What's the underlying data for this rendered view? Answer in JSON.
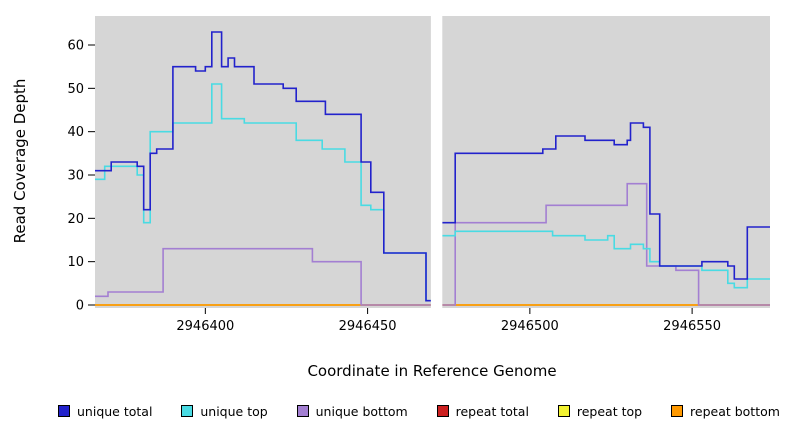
{
  "figure": {
    "background": "#ffffff",
    "panel_background": "#d6d6d6"
  },
  "axes": {
    "y_label": "Read Coverage Depth",
    "x_label": "Coordinate in Reference Genome",
    "y_ticks": [
      0,
      10,
      20,
      30,
      40,
      50,
      60
    ],
    "x_ticks": [
      2946400,
      2946450,
      2946500,
      2946550
    ]
  },
  "chart_data": {
    "type": "line",
    "step": true,
    "title": "",
    "xlabel": "Coordinate in Reference Genome",
    "ylabel": "Read Coverage Depth",
    "xlim": [
      2946366,
      2946574
    ],
    "ylim": [
      0,
      65
    ],
    "gap": [
      2946469.5,
      2946473
    ],
    "grid": false,
    "legend_position": "bottom",
    "series": [
      {
        "name": "repeat total",
        "color": "#cc2020",
        "segments": [
          [
            [
              2946366,
              0
            ],
            [
              2946469.5,
              0
            ]
          ],
          [
            [
              2946473,
              0
            ],
            [
              2946574,
              0
            ]
          ]
        ]
      },
      {
        "name": "repeat top",
        "color": "#f2f231",
        "segments": [
          [
            [
              2946366,
              0
            ],
            [
              2946469.5,
              0
            ]
          ],
          [
            [
              2946473,
              0
            ],
            [
              2946574,
              0
            ]
          ]
        ]
      },
      {
        "name": "repeat bottom",
        "color": "#ff9900",
        "segments": [
          [
            [
              2946366,
              0
            ],
            [
              2946469.5,
              0
            ]
          ],
          [
            [
              2946473,
              0
            ],
            [
              2946574,
              0
            ]
          ]
        ]
      },
      {
        "name": "unique bottom",
        "color": "#a37fd2",
        "segments": [
          [
            [
              2946366,
              2
            ],
            [
              2946370,
              3
            ],
            [
              2946387,
              13
            ],
            [
              2946433,
              10
            ],
            [
              2946448,
              0
            ],
            [
              2946469.5,
              0
            ]
          ],
          [
            [
              2946473,
              0
            ],
            [
              2946477,
              19
            ],
            [
              2946505,
              23
            ],
            [
              2946530,
              28
            ],
            [
              2946536,
              9
            ],
            [
              2946545,
              8
            ],
            [
              2946552,
              0
            ],
            [
              2946574,
              0
            ]
          ]
        ]
      },
      {
        "name": "unique top",
        "color": "#49dbe3",
        "segments": [
          [
            [
              2946366,
              29
            ],
            [
              2946369,
              32
            ],
            [
              2946379,
              30
            ],
            [
              2946381,
              19
            ],
            [
              2946383,
              40
            ],
            [
              2946390,
              42
            ],
            [
              2946402,
              51
            ],
            [
              2946405,
              43
            ],
            [
              2946412,
              42
            ],
            [
              2946428,
              38
            ],
            [
              2946436,
              36
            ],
            [
              2946443,
              33
            ],
            [
              2946448,
              23
            ],
            [
              2946451,
              22
            ],
            [
              2946455,
              12
            ],
            [
              2946468,
              1
            ],
            [
              2946469.5,
              1
            ]
          ],
          [
            [
              2946473,
              16
            ],
            [
              2946477,
              17
            ],
            [
              2946507,
              16
            ],
            [
              2946517,
              15
            ],
            [
              2946524,
              16
            ],
            [
              2946526,
              13
            ],
            [
              2946531,
              14
            ],
            [
              2946535,
              13
            ],
            [
              2946537,
              10
            ],
            [
              2946540,
              9
            ],
            [
              2946553,
              8
            ],
            [
              2946561,
              5
            ],
            [
              2946563,
              4
            ],
            [
              2946567,
              6
            ],
            [
              2946574,
              6
            ]
          ]
        ]
      },
      {
        "name": "unique total",
        "color": "#2222cc",
        "segments": [
          [
            [
              2946366,
              31
            ],
            [
              2946371,
              33
            ],
            [
              2946379,
              32
            ],
            [
              2946381,
              22
            ],
            [
              2946383,
              35
            ],
            [
              2946385,
              36
            ],
            [
              2946390,
              55
            ],
            [
              2946397,
              54
            ],
            [
              2946400,
              55
            ],
            [
              2946402,
              63
            ],
            [
              2946405,
              55
            ],
            [
              2946407,
              57
            ],
            [
              2946409,
              55
            ],
            [
              2946415,
              51
            ],
            [
              2946424,
              50
            ],
            [
              2946428,
              47
            ],
            [
              2946437,
              44
            ],
            [
              2946448,
              33
            ],
            [
              2946451,
              26
            ],
            [
              2946455,
              12
            ],
            [
              2946468,
              1
            ],
            [
              2946469.5,
              1
            ]
          ],
          [
            [
              2946473,
              19
            ],
            [
              2946477,
              35
            ],
            [
              2946504,
              36
            ],
            [
              2946508,
              39
            ],
            [
              2946517,
              38
            ],
            [
              2946526,
              37
            ],
            [
              2946530,
              38
            ],
            [
              2946531,
              42
            ],
            [
              2946535,
              41
            ],
            [
              2946537,
              21
            ],
            [
              2946540,
              9
            ],
            [
              2946553,
              10
            ],
            [
              2946561,
              9
            ],
            [
              2946563,
              6
            ],
            [
              2946567,
              18
            ],
            [
              2946574,
              18
            ]
          ]
        ]
      }
    ]
  },
  "legend": {
    "items": [
      {
        "label": "unique total",
        "color": "#2222cc"
      },
      {
        "label": "unique top",
        "color": "#49dbe3"
      },
      {
        "label": "unique bottom",
        "color": "#a37fd2"
      },
      {
        "label": "repeat total",
        "color": "#cc2020"
      },
      {
        "label": "repeat top",
        "color": "#f2f231"
      },
      {
        "label": "repeat bottom",
        "color": "#ff9900"
      }
    ]
  }
}
